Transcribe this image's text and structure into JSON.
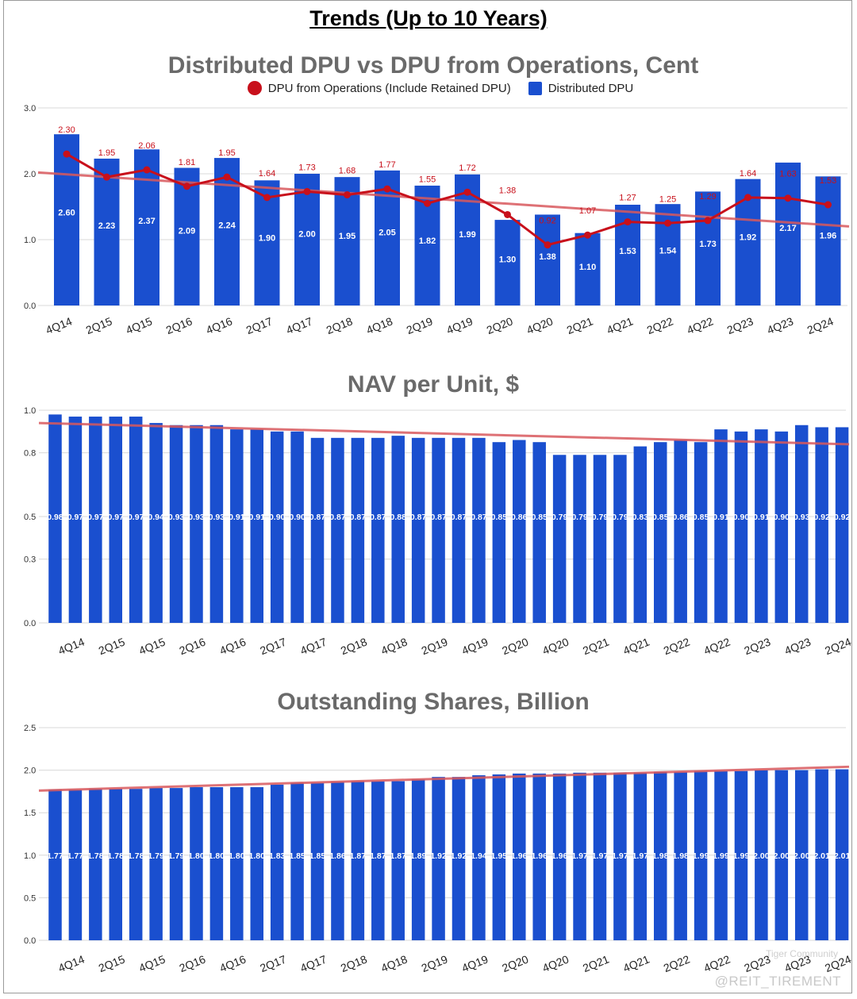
{
  "page_title": "Trends (Up to 10 Years)",
  "watermark": "@REIT_TIREMENT",
  "watermark_secondary": "Tiger Community",
  "colors": {
    "bar": "#1a4fcf",
    "line": "#c8101b",
    "trend": "#d9595d",
    "grid": "#d9d9d9",
    "title": "#6a6a6a"
  },
  "chart_data": [
    {
      "type": "bar",
      "title": "Distributed DPU vs DPU from Operations, Cent",
      "categories": [
        "4Q14",
        "2Q15",
        "4Q15",
        "2Q16",
        "4Q16",
        "2Q17",
        "4Q17",
        "2Q18",
        "4Q18",
        "2Q19",
        "4Q19",
        "2Q20",
        "4Q20",
        "2Q21",
        "4Q21",
        "2Q22",
        "4Q22",
        "2Q23",
        "4Q23",
        "2Q24"
      ],
      "ylim": [
        0,
        3.0
      ],
      "yticks": [
        "0.0",
        "1.0",
        "2.0",
        "3.0"
      ],
      "series": [
        {
          "name": "Distributed DPU",
          "kind": "bar",
          "values": [
            2.6,
            2.23,
            2.37,
            2.09,
            2.24,
            1.9,
            2.0,
            1.95,
            2.05,
            1.82,
            1.99,
            1.3,
            1.38,
            1.1,
            1.53,
            1.54,
            1.73,
            1.92,
            2.17,
            1.96
          ],
          "labels": [
            "2.60",
            "2.23",
            "2.37",
            "2.09",
            "2.24",
            "1.90",
            "2.00",
            "1.95",
            "2.05",
            "1.82",
            "1.99",
            "1.30",
            "1.38",
            "1.10",
            "1.53",
            "1.54",
            "1.73",
            "1.92",
            "2.17",
            "1.96"
          ]
        },
        {
          "name": "DPU from Operations (Include Retained DPU)",
          "kind": "line",
          "values": [
            2.3,
            1.95,
            2.06,
            1.81,
            1.95,
            1.64,
            1.73,
            1.68,
            1.77,
            1.55,
            1.72,
            1.38,
            0.92,
            1.07,
            1.27,
            1.25,
            1.29,
            1.64,
            1.63,
            1.53
          ],
          "labels": [
            "2.30",
            "1.95",
            "2.06",
            "1.81",
            "1.95",
            "1.64",
            "1.73",
            "1.68",
            "1.77",
            "1.55",
            "1.72",
            "1.38",
            "0.92",
            "1.07",
            "1.27",
            "1.25",
            "1.29",
            "1.64",
            "1.63",
            "1.53"
          ]
        }
      ],
      "trendline": [
        2.02,
        1.2
      ]
    },
    {
      "type": "bar",
      "title": "NAV per Unit, $",
      "categories": [
        "4Q14",
        "2Q15",
        "4Q15",
        "2Q16",
        "4Q16",
        "2Q17",
        "4Q17",
        "2Q18",
        "4Q18",
        "2Q19",
        "4Q19",
        "2Q20",
        "4Q20",
        "2Q21",
        "4Q21",
        "2Q22",
        "4Q22",
        "2Q23",
        "4Q23",
        "2Q24"
      ],
      "ylim": [
        0,
        1.0
      ],
      "yticks": [
        "0.0",
        "0.3",
        "0.5",
        "0.8",
        "1.0"
      ],
      "values": [
        0.98,
        0.97,
        0.97,
        0.97,
        0.97,
        0.94,
        0.93,
        0.93,
        0.93,
        0.91,
        0.91,
        0.9,
        0.9,
        0.87,
        0.87,
        0.87,
        0.87,
        0.88,
        0.87,
        0.87,
        0.87,
        0.87,
        0.85,
        0.86,
        0.85,
        0.79,
        0.79,
        0.79,
        0.79,
        0.83,
        0.85,
        0.86,
        0.85,
        0.91,
        0.9,
        0.91,
        0.9,
        0.93,
        0.92,
        0.92
      ],
      "labels": [
        "0.98",
        "0.97",
        "0.97",
        "0.97",
        "0.97",
        "0.94",
        "0.93",
        "0.93",
        "0.93",
        "0.91",
        "0.91",
        "0.90",
        "0.90",
        "0.87",
        "0.87",
        "0.87",
        "0.87",
        "0.88",
        "0.87",
        "0.87",
        "0.87",
        "0.87",
        "0.85",
        "0.86",
        "0.85",
        "0.79",
        "0.79",
        "0.79",
        "0.79",
        "0.83",
        "0.85",
        "0.86",
        "0.85",
        "0.91",
        "0.90",
        "0.91",
        "0.90",
        "0.93",
        "0.92",
        "0.92"
      ],
      "trendline": [
        0.94,
        0.84
      ]
    },
    {
      "type": "bar",
      "title": "Outstanding Shares, Billion",
      "categories": [
        "4Q14",
        "2Q15",
        "4Q15",
        "2Q16",
        "4Q16",
        "2Q17",
        "4Q17",
        "2Q18",
        "4Q18",
        "2Q19",
        "4Q19",
        "2Q20",
        "4Q20",
        "2Q21",
        "4Q21",
        "2Q22",
        "4Q22",
        "2Q23",
        "4Q23",
        "2Q24"
      ],
      "ylim": [
        0,
        2.5
      ],
      "yticks": [
        "0.0",
        "0.5",
        "1.0",
        "1.5",
        "2.0",
        "2.5"
      ],
      "values": [
        1.77,
        1.77,
        1.78,
        1.78,
        1.78,
        1.79,
        1.79,
        1.8,
        1.8,
        1.8,
        1.8,
        1.83,
        1.85,
        1.85,
        1.86,
        1.87,
        1.87,
        1.87,
        1.89,
        1.92,
        1.92,
        1.94,
        1.95,
        1.96,
        1.96,
        1.96,
        1.97,
        1.97,
        1.97,
        1.97,
        1.98,
        1.98,
        1.99,
        1.99,
        1.99,
        2.0,
        2.0,
        2.0,
        2.01,
        2.01
      ],
      "labels": [
        "1.77",
        "1.77",
        "1.78",
        "1.78",
        "1.78",
        "1.79",
        "1.79",
        "1.80",
        "1.80",
        "1.80",
        "1.80",
        "1.83",
        "1.85",
        "1.85",
        "1.86",
        "1.87",
        "1.87",
        "1.87",
        "1.89",
        "1.92",
        "1.92",
        "1.94",
        "1.95",
        "1.96",
        "1.96",
        "1.96",
        "1.97",
        "1.97",
        "1.97",
        "1.97",
        "1.98",
        "1.98",
        "1.99",
        "1.99",
        "1.99",
        "2.00",
        "2.00",
        "2.00",
        "2.01",
        "2.01"
      ],
      "trendline": [
        1.76,
        2.04
      ]
    }
  ]
}
